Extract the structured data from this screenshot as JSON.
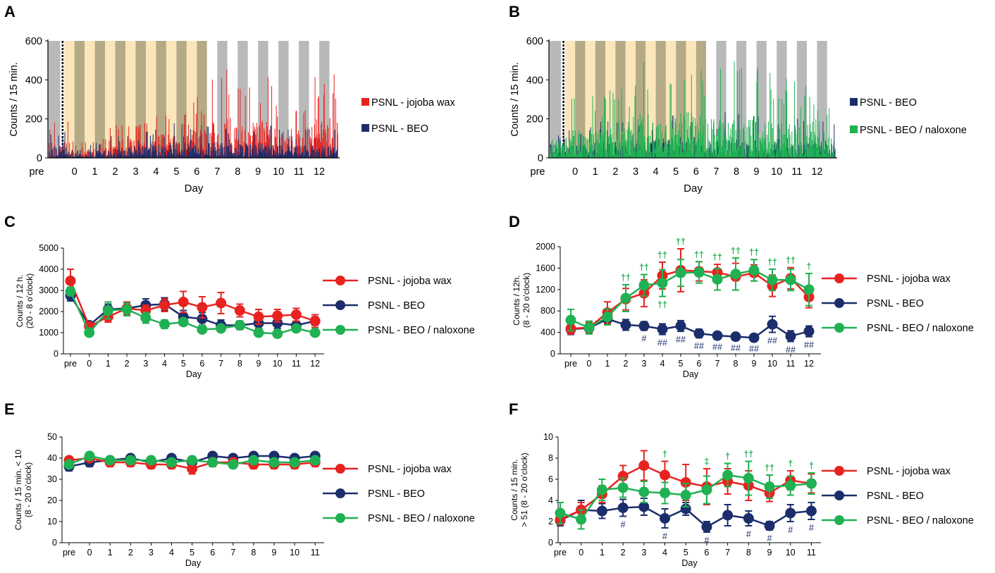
{
  "colors": {
    "jojoba": "#e8231f",
    "beo": "#1b2d6b",
    "naloxone": "#1fb152",
    "dark_shade": "#b5aa86",
    "light_shade": "#fbe6bb",
    "gray_shade": "#b9b9b9"
  },
  "chart_data": [
    {
      "panel": "A",
      "type": "bar",
      "ylabel": "Counts / 15 min.",
      "xlabel": "Day",
      "ylim": [
        0,
        600
      ],
      "yticks": [
        0,
        200,
        400,
        600
      ],
      "categories": [
        "pre",
        "0",
        "1",
        "2",
        "3",
        "4",
        "5",
        "6",
        "7",
        "8",
        "9",
        "10",
        "11",
        "12"
      ],
      "legend": [
        "PSNL - jojoba wax",
        "PSNL - BEO"
      ],
      "series": [
        {
          "name": "PSNL - jojoba wax",
          "color": "jojoba",
          "daily_peak": [
            190,
            85,
            110,
            230,
            230,
            280,
            270,
            340,
            460,
            380,
            420,
            350,
            370,
            460
          ]
        },
        {
          "name": "PSNL - BEO",
          "color": "beo",
          "daily_peak": [
            150,
            60,
            90,
            140,
            160,
            170,
            200,
            190,
            200,
            180,
            190,
            170,
            170,
            170
          ]
        }
      ]
    },
    {
      "panel": "B",
      "type": "bar",
      "ylabel": "Counts / 15 min.",
      "xlabel": "Day",
      "ylim": [
        0,
        600
      ],
      "yticks": [
        0,
        200,
        400,
        600
      ],
      "categories": [
        "pre",
        "0",
        "1",
        "2",
        "3",
        "4",
        "5",
        "6",
        "7",
        "8",
        "9",
        "10",
        "11",
        "12"
      ],
      "legend": [
        "PSNL - BEO",
        "PSNL - BEO / naloxone"
      ],
      "series": [
        {
          "name": "PSNL - BEO",
          "color": "beo",
          "daily_peak": [
            160,
            150,
            190,
            200,
            200,
            230,
            240,
            250,
            240,
            230,
            240,
            230,
            220,
            220
          ]
        },
        {
          "name": "PSNL - BEO / naloxone",
          "color": "naloxone",
          "daily_peak": [
            230,
            330,
            330,
            410,
            520,
            400,
            530,
            500,
            460,
            520,
            510,
            420,
            400,
            300
          ]
        }
      ]
    },
    {
      "panel": "C",
      "type": "line",
      "ylabel": "Counts / 12 h.\n(20 - 8 o'clock)",
      "xlabel": "Day",
      "ylim": [
        0,
        5000
      ],
      "yticks": [
        0,
        1000,
        2000,
        3000,
        4000,
        5000
      ],
      "categories": [
        "pre",
        "0",
        "1",
        "2",
        "3",
        "4",
        "5",
        "6",
        "7",
        "8",
        "9",
        "10",
        "11",
        "12"
      ],
      "series": [
        {
          "name": "PSNL - jojoba wax",
          "color": "jojoba",
          "values": [
            3450,
            1300,
            1750,
            2150,
            2050,
            2300,
            2450,
            2200,
            2400,
            2050,
            1750,
            1800,
            1850,
            1550
          ],
          "errors": [
            550,
            150,
            250,
            300,
            250,
            300,
            500,
            500,
            500,
            300,
            350,
            300,
            300,
            300
          ]
        },
        {
          "name": "PSNL - BEO",
          "color": "beo",
          "values": [
            2750,
            1350,
            2100,
            2150,
            2300,
            2350,
            1750,
            1650,
            1350,
            1350,
            1450,
            1450,
            1350,
            1550
          ],
          "errors": [
            250,
            150,
            250,
            300,
            300,
            300,
            300,
            300,
            250,
            200,
            250,
            250,
            200,
            200
          ]
        },
        {
          "name": "PSNL - BEO / naloxone",
          "color": "naloxone",
          "values": [
            2950,
            1000,
            2050,
            2100,
            1700,
            1400,
            1500,
            1150,
            1200,
            1350,
            1000,
            950,
            1200,
            1000
          ],
          "errors": [
            200,
            150,
            400,
            300,
            250,
            200,
            150,
            150,
            150,
            150,
            150,
            150,
            150,
            150
          ]
        }
      ]
    },
    {
      "panel": "D",
      "type": "line",
      "ylabel": "Counts / 12h.\n(8 - 20 o'clock)",
      "xlabel": "Day",
      "ylim": [
        0,
        2000
      ],
      "yticks": [
        0,
        400,
        800,
        1200,
        1600,
        2000
      ],
      "categories": [
        "pre",
        "0",
        "1",
        "2",
        "3",
        "4",
        "5",
        "6",
        "7",
        "8",
        "9",
        "10",
        "11",
        "12"
      ],
      "series": [
        {
          "name": "PSNL - jojoba wax",
          "color": "jojoba",
          "values": [
            470,
            490,
            770,
            1020,
            1130,
            1460,
            1560,
            1540,
            1520,
            1440,
            1510,
            1270,
            1410,
            1060
          ],
          "errors": [
            100,
            100,
            200,
            200,
            250,
            250,
            400,
            180,
            150,
            250,
            150,
            200,
            200,
            200
          ]
        },
        {
          "name": "PSNL - BEO",
          "color": "beo",
          "values": [
            460,
            480,
            650,
            540,
            520,
            460,
            520,
            380,
            340,
            320,
            300,
            550,
            330,
            420
          ],
          "errors": [
            100,
            100,
            100,
            100,
            80,
            100,
            100,
            80,
            60,
            60,
            50,
            150,
            100,
            100
          ]
        },
        {
          "name": "PSNL - BEO / naloxone",
          "color": "naloxone",
          "values": [
            630,
            490,
            690,
            1040,
            1280,
            1320,
            1510,
            1520,
            1390,
            1490,
            1560,
            1380,
            1380,
            1200
          ],
          "errors": [
            200,
            120,
            150,
            250,
            200,
            250,
            250,
            200,
            200,
            300,
            200,
            200,
            200,
            300
          ]
        }
      ],
      "annotations": {
        "dagger_labels": [
          "",
          "",
          "",
          "††",
          "††",
          "††",
          "††",
          "††",
          "††",
          "††",
          "††",
          "††",
          "††",
          "†"
        ],
        "dagger_below": {
          "5": "††"
        },
        "hash_labels": [
          "",
          "",
          "",
          "",
          "#",
          "##",
          "##",
          "##",
          "##",
          "##",
          "##",
          "##",
          "##",
          "##"
        ]
      }
    },
    {
      "panel": "E",
      "type": "line",
      "ylabel": "Counts / 15 min. < 10\n(8 - 20 o'clock)",
      "xlabel": "Day",
      "ylim": [
        0,
        50
      ],
      "yticks": [
        0,
        10,
        20,
        30,
        40,
        50
      ],
      "categories": [
        "pre",
        "0",
        "1",
        "2",
        "3",
        "4",
        "5",
        "6",
        "7",
        "8",
        "9",
        "10",
        "11"
      ],
      "series": [
        {
          "name": "PSNL - jojoba wax",
          "color": "jojoba",
          "values": [
            39,
            40,
            38,
            38,
            37,
            37,
            35,
            38,
            38,
            37,
            37,
            37,
            38
          ],
          "errors": [
            1.5,
            1.5,
            2,
            2,
            2,
            2,
            2.5,
            2,
            2,
            2,
            2,
            2,
            2
          ]
        },
        {
          "name": "PSNL - BEO",
          "color": "beo",
          "values": [
            36,
            38,
            39,
            40,
            38,
            40,
            38,
            41,
            40,
            41,
            41,
            40,
            41
          ],
          "errors": [
            2,
            2,
            1.5,
            1.5,
            1.5,
            1.5,
            2,
            1.5,
            1.5,
            1.5,
            1.5,
            1.5,
            1.5
          ]
        },
        {
          "name": "PSNL - BEO / naloxone",
          "color": "naloxone",
          "values": [
            37,
            41,
            39,
            39,
            39,
            38,
            39,
            38,
            37,
            39,
            38,
            38,
            39
          ],
          "errors": [
            1.5,
            1.5,
            1.5,
            1.5,
            1.5,
            1.5,
            1.5,
            1.5,
            1.5,
            1.5,
            1.5,
            1.5,
            1.5
          ]
        }
      ]
    },
    {
      "panel": "F",
      "type": "line",
      "ylabel": "Counts / 15 min.\n> 51 (8 - 20 o'clock)",
      "xlabel": "Day",
      "ylim": [
        0,
        10
      ],
      "yticks": [
        0,
        2,
        4,
        6,
        8,
        10
      ],
      "categories": [
        "pre",
        "0",
        "1",
        "2",
        "3",
        "4",
        "5",
        "6",
        "7",
        "8",
        "9",
        "10",
        "11"
      ],
      "series": [
        {
          "name": "PSNL - jojoba wax",
          "color": "jojoba",
          "values": [
            2.2,
            3.1,
            4.6,
            6.3,
            7.3,
            6.4,
            5.7,
            5.3,
            5.8,
            5.4,
            4.7,
            5.9,
            5.6
          ],
          "errors": [
            0.5,
            0.7,
            0.8,
            1.0,
            1.4,
            1.3,
            1.7,
            1.7,
            1.2,
            1.4,
            0.8,
            0.9,
            0.9
          ]
        },
        {
          "name": "PSNL - BEO",
          "color": "beo",
          "values": [
            2.1,
            3.1,
            3.0,
            3.3,
            3.4,
            2.3,
            3.2,
            1.5,
            2.6,
            2.3,
            1.6,
            2.8,
            3.0
          ],
          "errors": [
            0.5,
            0.9,
            0.7,
            0.8,
            0.8,
            0.9,
            0.6,
            0.5,
            1.0,
            0.7,
            0.4,
            0.8,
            0.8
          ]
        },
        {
          "name": "PSNL - BEO / naloxone",
          "color": "naloxone",
          "values": [
            2.8,
            2.2,
            5.0,
            5.2,
            4.8,
            4.7,
            4.5,
            5.0,
            6.4,
            6.1,
            5.3,
            5.4,
            5.6
          ],
          "errors": [
            1.0,
            0.9,
            1.0,
            0.9,
            1.0,
            1.0,
            1.1,
            1.3,
            1.1,
            1.6,
            1.1,
            0.9,
            1.0
          ]
        }
      ],
      "annotations": {
        "dagger_labels": [
          "",
          "",
          "",
          "",
          "",
          "†",
          "",
          "‡",
          "†",
          "††",
          "††",
          "†",
          "†"
        ],
        "hash_labels": [
          "",
          "",
          "",
          "#",
          "",
          "#",
          "",
          "#",
          "",
          "#",
          "#",
          "#",
          "#"
        ]
      }
    }
  ],
  "panels": {
    "A": {
      "letter": "A",
      "legend1": "PSNL - jojoba wax",
      "legend2": "PSNL - BEO"
    },
    "B": {
      "letter": "B",
      "legend1": "PSNL - BEO",
      "legend2": "PSNL - BEO / naloxone"
    },
    "C": {
      "letter": "C"
    },
    "D": {
      "letter": "D"
    },
    "E": {
      "letter": "E"
    },
    "F": {
      "letter": "F"
    }
  },
  "line_legend": [
    "PSNL - jojoba wax",
    "PSNL - BEO",
    "PSNL - BEO / naloxone"
  ]
}
